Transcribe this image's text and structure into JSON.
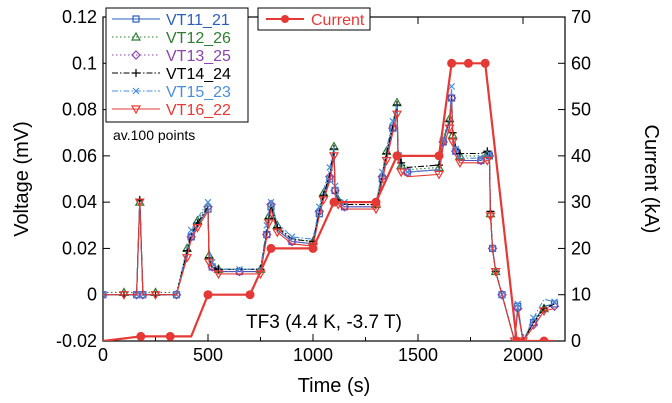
{
  "chart_data": {
    "type": "line",
    "xlabel": "Time (s)",
    "ylabel_left": "Voltage (mV)",
    "ylabel_right": "Current (kA)",
    "xlim": [
      0,
      2200
    ],
    "ylim_left": [
      -0.02,
      0.12
    ],
    "ylim_right": [
      0,
      70
    ],
    "x_ticks": [
      "0",
      "500",
      "1000",
      "1500",
      "2000"
    ],
    "y_left_ticks": [
      "-0.02",
      "0",
      "0.02",
      "0.04",
      "0.06",
      "0.08",
      "0.1",
      "0.12"
    ],
    "y_right_ticks": [
      "0",
      "10",
      "20",
      "30",
      "40",
      "50",
      "60",
      "70"
    ],
    "grid": false,
    "annotations": {
      "averaging": "av.100 points",
      "condition": "TF3 (4.4 K, -3.7 T)"
    },
    "voltage_series": [
      {
        "name": "VT11_21",
        "color": "#2a5fb8",
        "marker": "square",
        "dash": "solid",
        "x": [
          0,
          100,
          160,
          175,
          190,
          250,
          350,
          400,
          420,
          450,
          500,
          505,
          520,
          550,
          650,
          750,
          780,
          790,
          800,
          830,
          900,
          1000,
          1030,
          1050,
          1080,
          1100,
          1105,
          1120,
          1150,
          1300,
          1330,
          1350,
          1380,
          1400,
          1405,
          1420,
          1450,
          1600,
          1620,
          1650,
          1660,
          1665,
          1680,
          1700,
          1800,
          1830,
          1840,
          1845,
          1855,
          1870,
          1900,
          1960,
          1975,
          2000,
          2050,
          2100,
          2150
        ],
        "y": [
          0,
          0,
          0,
          0.042,
          0,
          0,
          0,
          0.018,
          0.025,
          0.03,
          0.037,
          0.015,
          0.012,
          0.01,
          0.01,
          0.01,
          0.026,
          0.032,
          0.038,
          0.028,
          0.023,
          0.022,
          0.035,
          0.042,
          0.05,
          0.062,
          0.045,
          0.04,
          0.038,
          0.038,
          0.05,
          0.06,
          0.072,
          0.082,
          0.06,
          0.055,
          0.053,
          0.054,
          0.066,
          0.075,
          0.085,
          0.068,
          0.062,
          0.058,
          0.058,
          0.06,
          0.06,
          0.037,
          0.02,
          0.01,
          0,
          -0.02,
          -0.005,
          -0.02,
          -0.012,
          -0.005,
          -0.004
        ]
      },
      {
        "name": "VT12_26",
        "color": "#2e7d32",
        "marker": "triangle",
        "dash": "dotted",
        "x": [
          0,
          100,
          160,
          175,
          190,
          250,
          350,
          400,
          420,
          450,
          500,
          505,
          520,
          550,
          650,
          750,
          780,
          790,
          800,
          830,
          900,
          1000,
          1030,
          1050,
          1080,
          1100,
          1105,
          1120,
          1150,
          1300,
          1330,
          1350,
          1380,
          1400,
          1405,
          1420,
          1450,
          1600,
          1620,
          1650,
          1660,
          1665,
          1680,
          1700,
          1800,
          1830,
          1840,
          1845,
          1855,
          1870,
          1900,
          1960,
          1975,
          2000,
          2050,
          2100,
          2150
        ],
        "y": [
          0.001,
          0.001,
          0.001,
          0.04,
          0.001,
          0.001,
          0.001,
          0.02,
          0.027,
          0.032,
          0.039,
          0.017,
          0.013,
          0.011,
          0.011,
          0.011,
          0.028,
          0.034,
          0.04,
          0.03,
          0.024,
          0.023,
          0.037,
          0.044,
          0.052,
          0.064,
          0.046,
          0.041,
          0.039,
          0.039,
          0.052,
          0.062,
          0.074,
          0.083,
          0.061,
          0.056,
          0.054,
          0.055,
          0.068,
          0.076,
          0.087,
          0.069,
          0.063,
          0.06,
          0.06,
          0.061,
          0.061,
          0.035,
          0.02,
          0.01,
          0,
          -0.02,
          -0.006,
          -0.02,
          -0.011,
          -0.006,
          -0.004
        ]
      },
      {
        "name": "VT13_25",
        "color": "#8e44ad",
        "marker": "diamond",
        "dash": "dotted",
        "x": [
          0,
          100,
          160,
          175,
          190,
          250,
          350,
          400,
          420,
          450,
          500,
          505,
          520,
          550,
          650,
          750,
          780,
          790,
          800,
          830,
          900,
          1000,
          1030,
          1050,
          1080,
          1100,
          1105,
          1120,
          1150,
          1300,
          1330,
          1350,
          1380,
          1400,
          1405,
          1420,
          1450,
          1600,
          1620,
          1650,
          1660,
          1665,
          1680,
          1700,
          1800,
          1830,
          1840,
          1845,
          1855,
          1870,
          1900,
          1960,
          1975,
          2000,
          2050,
          2100,
          2150
        ],
        "y": [
          0,
          0,
          0,
          0.04,
          0,
          0,
          0,
          0.017,
          0.025,
          0.031,
          0.038,
          0.016,
          0.012,
          0.01,
          0.01,
          0.01,
          0.026,
          0.033,
          0.039,
          0.029,
          0.023,
          0.022,
          0.036,
          0.043,
          0.051,
          0.062,
          0.045,
          0.04,
          0.038,
          0.038,
          0.051,
          0.06,
          0.072,
          0.08,
          0.06,
          0.055,
          0.053,
          0.054,
          0.066,
          0.074,
          0.085,
          0.068,
          0.062,
          0.058,
          0.058,
          0.06,
          0.06,
          0.036,
          0.02,
          0.01,
          0,
          -0.02,
          -0.006,
          -0.02,
          -0.013,
          -0.006,
          -0.005
        ]
      },
      {
        "name": "VT14_24",
        "color": "#000000",
        "marker": "plus",
        "dash": "dashdot",
        "x": [
          0,
          100,
          160,
          175,
          190,
          250,
          350,
          400,
          420,
          450,
          500,
          505,
          520,
          550,
          650,
          750,
          780,
          790,
          800,
          830,
          900,
          1000,
          1030,
          1050,
          1080,
          1100,
          1105,
          1120,
          1150,
          1300,
          1330,
          1350,
          1380,
          1400,
          1405,
          1420,
          1450,
          1600,
          1620,
          1650,
          1660,
          1665,
          1680,
          1700,
          1800,
          1830,
          1840,
          1845,
          1855,
          1870,
          1900,
          1960,
          1975,
          2000,
          2050,
          2100,
          2150
        ],
        "y": [
          0,
          0,
          0,
          0.041,
          0,
          0,
          0,
          0.019,
          0.026,
          0.031,
          0.038,
          0.016,
          0.012,
          0.011,
          0.011,
          0.011,
          0.027,
          0.033,
          0.039,
          0.029,
          0.024,
          0.023,
          0.036,
          0.043,
          0.052,
          0.063,
          0.046,
          0.041,
          0.039,
          0.039,
          0.052,
          0.061,
          0.073,
          0.082,
          0.062,
          0.057,
          0.055,
          0.056,
          0.067,
          0.075,
          0.086,
          0.07,
          0.064,
          0.061,
          0.061,
          0.062,
          0.062,
          0.036,
          0.02,
          0.01,
          0,
          -0.02,
          -0.006,
          -0.02,
          -0.012,
          -0.006,
          -0.004
        ]
      },
      {
        "name": "VT15_23",
        "color": "#4a8fd8",
        "marker": "cross",
        "dash": "dashdot",
        "x": [
          0,
          100,
          160,
          175,
          190,
          250,
          350,
          400,
          420,
          450,
          500,
          505,
          520,
          550,
          650,
          750,
          780,
          790,
          800,
          830,
          900,
          1000,
          1030,
          1050,
          1080,
          1100,
          1105,
          1120,
          1150,
          1300,
          1330,
          1350,
          1380,
          1400,
          1405,
          1420,
          1450,
          1600,
          1620,
          1650,
          1660,
          1665,
          1680,
          1700,
          1800,
          1830,
          1840,
          1845,
          1855,
          1870,
          1900,
          1960,
          1975,
          2000,
          2050,
          2100,
          2150
        ],
        "y": [
          0,
          0,
          0,
          0.04,
          0,
          0,
          0,
          0.02,
          0.028,
          0.033,
          0.04,
          0.02,
          0.014,
          0.011,
          0.011,
          0.011,
          0.03,
          0.036,
          0.04,
          0.031,
          0.025,
          0.024,
          0.038,
          0.045,
          0.055,
          0.064,
          0.047,
          0.042,
          0.04,
          0.04,
          0.053,
          0.063,
          0.075,
          0.082,
          0.06,
          0.055,
          0.053,
          0.054,
          0.067,
          0.076,
          0.09,
          0.069,
          0.063,
          0.059,
          0.059,
          0.061,
          0.061,
          0.036,
          0.02,
          0.01,
          0,
          -0.02,
          -0.004,
          -0.02,
          -0.01,
          -0.002,
          -0.003
        ]
      },
      {
        "name": "VT16_22",
        "color": "#e53935",
        "marker": "triangle-down",
        "dash": "solid",
        "x": [
          0,
          100,
          160,
          175,
          190,
          250,
          350,
          400,
          420,
          450,
          500,
          505,
          520,
          550,
          650,
          750,
          780,
          790,
          800,
          830,
          900,
          1000,
          1030,
          1050,
          1080,
          1100,
          1105,
          1120,
          1150,
          1300,
          1330,
          1350,
          1380,
          1400,
          1405,
          1420,
          1450,
          1600,
          1620,
          1650,
          1660,
          1665,
          1680,
          1700,
          1800,
          1830,
          1840,
          1845,
          1855,
          1870,
          1900,
          1960,
          1975,
          2000,
          2050,
          2100,
          2150
        ],
        "y": [
          0,
          0,
          0,
          0.04,
          0,
          0,
          0,
          0.016,
          0.024,
          0.029,
          0.036,
          0.014,
          0.011,
          0.009,
          0.009,
          0.009,
          0.025,
          0.031,
          0.037,
          0.027,
          0.022,
          0.021,
          0.034,
          0.041,
          0.049,
          0.06,
          0.043,
          0.039,
          0.037,
          0.037,
          0.049,
          0.058,
          0.07,
          0.078,
          0.058,
          0.053,
          0.051,
          0.052,
          0.064,
          0.072,
          0.084,
          0.066,
          0.06,
          0.057,
          0.057,
          0.058,
          0.058,
          0.034,
          0.02,
          0.01,
          0,
          -0.02,
          -0.007,
          -0.02,
          -0.014,
          -0.007,
          -0.006
        ]
      }
    ],
    "current_series": {
      "name": "Current",
      "color": "#e53935",
      "marker": "circle",
      "axis": "right",
      "x": [
        0,
        180,
        320,
        420,
        500,
        700,
        800,
        1000,
        1100,
        1300,
        1400,
        1600,
        1660,
        1820,
        1970,
        2000,
        2100,
        2150
      ],
      "y": [
        0,
        1,
        1,
        1,
        10,
        10,
        20,
        20,
        30,
        30,
        40,
        40,
        60,
        60,
        0,
        0,
        0,
        0
      ],
      "marker_x": [
        180,
        320,
        500,
        700,
        800,
        1000,
        1100,
        1300,
        1400,
        1600,
        1660,
        1740,
        1820,
        1970,
        2100
      ]
    }
  }
}
